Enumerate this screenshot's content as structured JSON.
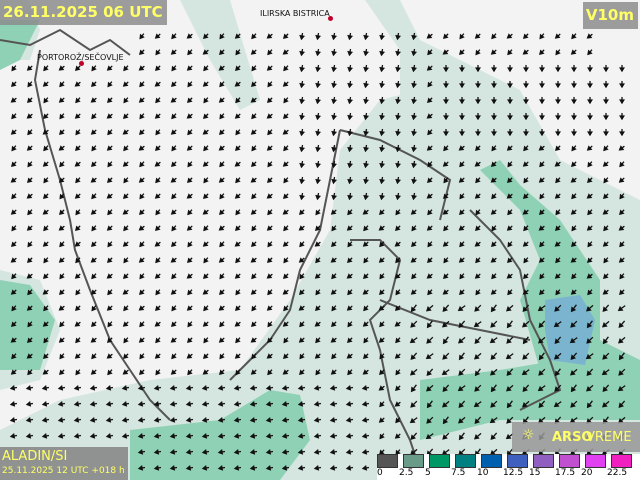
{
  "header": {
    "valid_time": "26.11.2025 06 UTC",
    "parameter": "V10m"
  },
  "model": {
    "name": "ALADIN/SI",
    "run": "25.11.2025 12 UTC +018 h"
  },
  "brand": {
    "name_bold": "ARSO",
    "name_light": "VREME",
    "logo_icon": "sun-cloud-icon"
  },
  "cities": [
    {
      "name": "ILIRSKA BISTRICA"
    },
    {
      "name": "PORTOROŽ/SEČOVLJE"
    }
  ],
  "legend": {
    "unit_ticks": [
      "0",
      "2.5",
      "5",
      "7.5",
      "10",
      "12.5",
      "15",
      "17.5",
      "20",
      "22.5"
    ],
    "colors": [
      "#555555",
      "#6a9a88",
      "#009966",
      "#008080",
      "#0060b0",
      "#4060c0",
      "#9060c0",
      "#c050d0",
      "#e040f0",
      "#f020c0"
    ]
  },
  "colors": {
    "land": "#f3f3f3",
    "wind_2_5": "#d4e6df",
    "wind_5": "#8fd1b5",
    "wind_10": "#7ab4cf",
    "coast": "#555555",
    "label": "#ffff66"
  }
}
